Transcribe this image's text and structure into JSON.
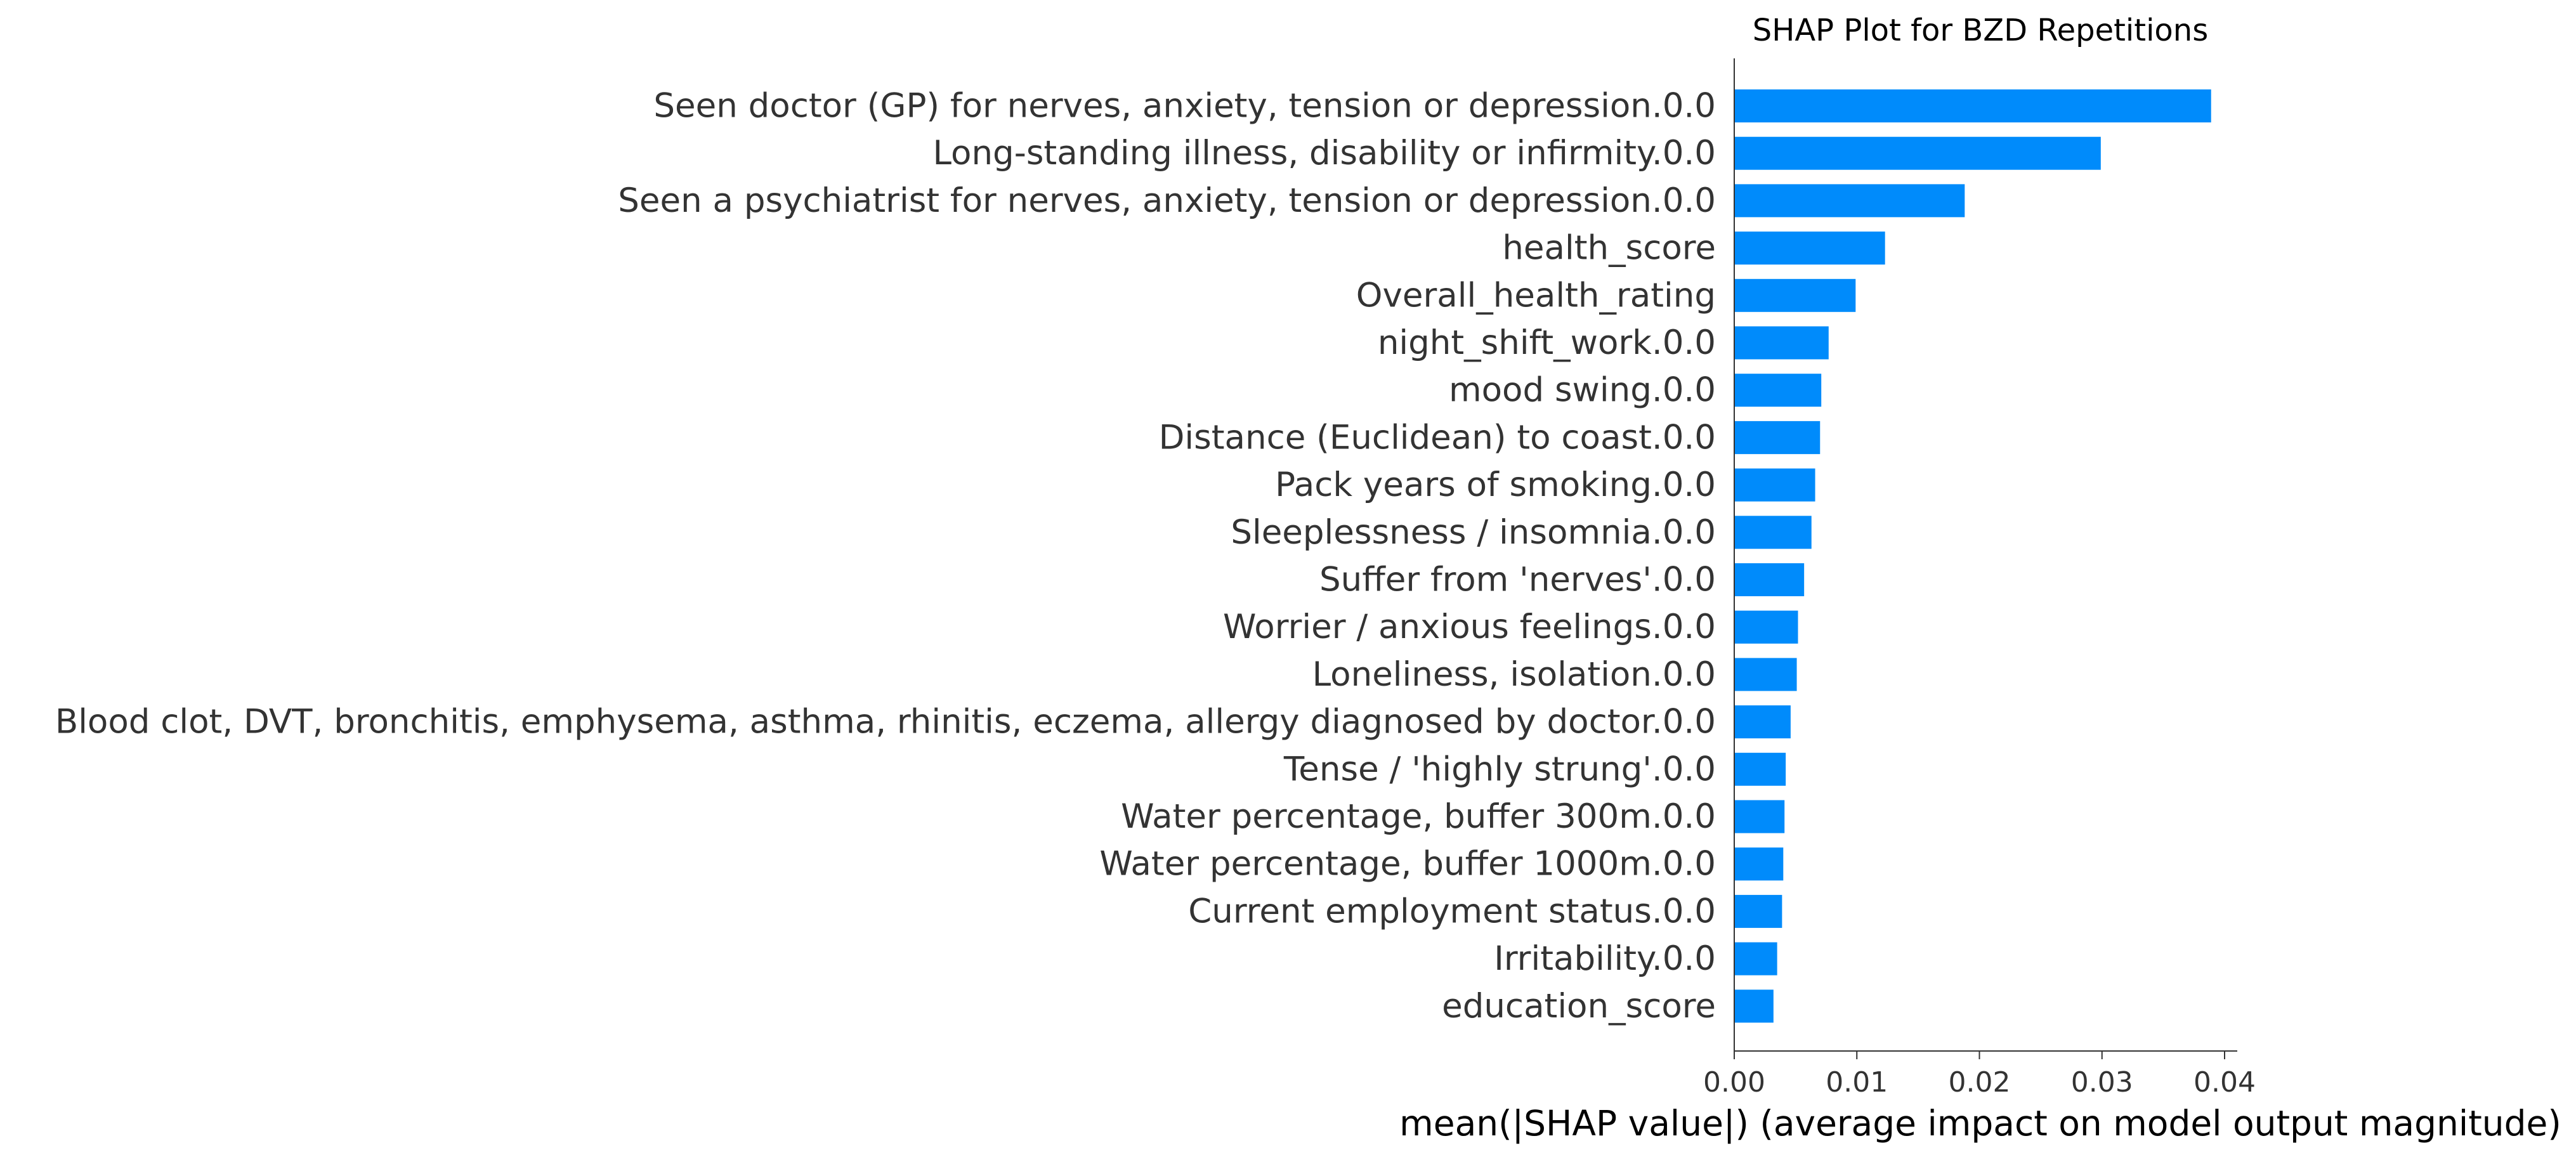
{
  "chart_data": {
    "type": "bar",
    "orientation": "horizontal",
    "title": "SHAP Plot for BZD Repetitions",
    "xlabel": "mean(|SHAP value|) (average impact on model output magnitude)",
    "ylabel": "",
    "xlim": [
      0.0,
      0.04
    ],
    "xticks": [
      0.0,
      0.01,
      0.02,
      0.03,
      0.04
    ],
    "xtick_labels": [
      "0.00",
      "0.01",
      "0.02",
      "0.03",
      "0.04"
    ],
    "grid": false,
    "bar_color": "#008bfb",
    "categories": [
      "Seen doctor (GP) for nerves, anxiety, tension or depression.0.0",
      "Long-standing illness, disability or infirmity.0.0",
      "Seen a psychiatrist for nerves, anxiety, tension or depression.0.0",
      "health_score",
      "Overall_health_rating",
      "night_shift_work.0.0",
      "mood swing.0.0",
      "Distance (Euclidean) to coast.0.0",
      "Pack years of smoking.0.0",
      "Sleeplessness / insomnia.0.0",
      "Suffer from 'nerves'.0.0",
      "Worrier / anxious feelings.0.0",
      "Loneliness, isolation.0.0",
      "Blood clot, DVT, bronchitis, emphysema, asthma, rhinitis, eczema, allergy diagnosed by doctor.0.0",
      "Tense / 'highly strung'.0.0",
      "Water percentage, buffer 300m.0.0",
      "Water percentage, buffer 1000m.0.0",
      "Current employment status.0.0",
      "Irritability.0.0",
      "education_score"
    ],
    "values": [
      0.0389,
      0.0299,
      0.0188,
      0.0123,
      0.0099,
      0.0077,
      0.0071,
      0.007,
      0.0066,
      0.0063,
      0.0057,
      0.0052,
      0.0051,
      0.0046,
      0.0042,
      0.0041,
      0.004,
      0.0039,
      0.0035,
      0.0032
    ]
  }
}
